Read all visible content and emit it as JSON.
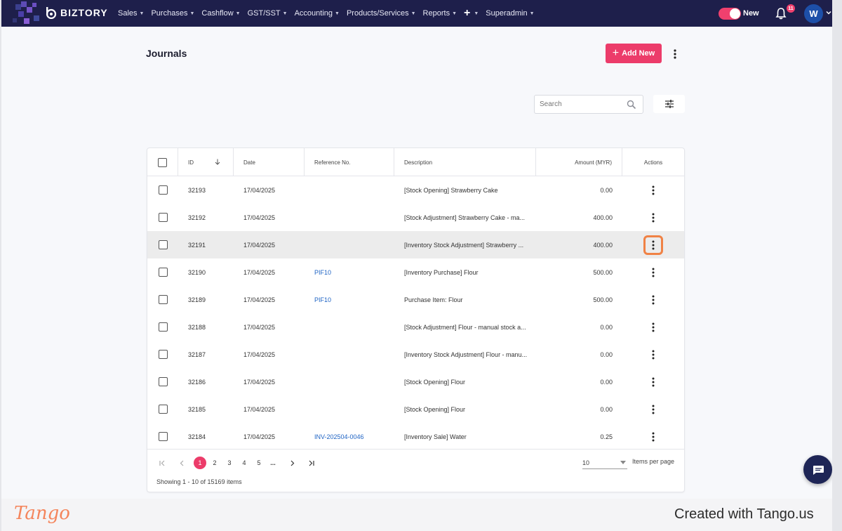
{
  "app": {
    "brand": "BIZTORY"
  },
  "nav": {
    "items": [
      {
        "label": "Sales"
      },
      {
        "label": "Purchases"
      },
      {
        "label": "Cashflow"
      },
      {
        "label": "GST/SST"
      },
      {
        "label": "Accounting"
      },
      {
        "label": "Products/Services"
      },
      {
        "label": "Reports"
      },
      {
        "label": "+"
      },
      {
        "label": "Superadmin"
      }
    ],
    "toggle_label": "New",
    "toggle_on": true,
    "notification_count": "11",
    "avatar_initial": "W"
  },
  "page": {
    "title": "Journals",
    "add_button": "Add New",
    "search_placeholder": "Search"
  },
  "table": {
    "columns": [
      "ID",
      "Date",
      "Reference No.",
      "Description",
      "Amount (MYR)",
      "Actions"
    ],
    "rows": [
      {
        "id": "32193",
        "date": "17/04/2025",
        "ref": "",
        "desc": "[Stock Opening] Strawberry Cake",
        "amount": "0.00"
      },
      {
        "id": "32192",
        "date": "17/04/2025",
        "ref": "",
        "desc": "[Stock Adjustment] Strawberry Cake - ma...",
        "amount": "400.00"
      },
      {
        "id": "32191",
        "date": "17/04/2025",
        "ref": "",
        "desc": "[Inventory Stock Adjustment] Strawberry ...",
        "amount": "400.00"
      },
      {
        "id": "32190",
        "date": "17/04/2025",
        "ref": "PIF10",
        "desc": "[Inventory Purchase] Flour",
        "amount": "500.00"
      },
      {
        "id": "32189",
        "date": "17/04/2025",
        "ref": "PIF10",
        "desc": "Purchase Item: Flour",
        "amount": "500.00"
      },
      {
        "id": "32188",
        "date": "17/04/2025",
        "ref": "",
        "desc": "[Stock Adjustment] Flour - manual stock a...",
        "amount": "0.00"
      },
      {
        "id": "32187",
        "date": "17/04/2025",
        "ref": "",
        "desc": "[Inventory Stock Adjustment] Flour - manu...",
        "amount": "0.00"
      },
      {
        "id": "32186",
        "date": "17/04/2025",
        "ref": "",
        "desc": "[Stock Opening] Flour",
        "amount": "0.00"
      },
      {
        "id": "32185",
        "date": "17/04/2025",
        "ref": "",
        "desc": "[Stock Opening] Flour",
        "amount": "0.00"
      },
      {
        "id": "32184",
        "date": "17/04/2025",
        "ref": "INV-202504-0046",
        "desc": "[Inventory Sale] Water",
        "amount": "0.25"
      }
    ]
  },
  "pagination": {
    "pages": [
      "1",
      "2",
      "3",
      "4",
      "5",
      "..."
    ],
    "current_page": "1",
    "items_per_page": "10",
    "items_per_page_label": "Items per page",
    "showing": "Showing 1 - 10 of 15169 items"
  },
  "footer": {
    "tango_logo": "Tango",
    "created_text": "Created with Tango.us"
  },
  "colors": {
    "nav_bg": "#1e1f4b",
    "accent": "#ec3c6a",
    "link": "#1e63c4",
    "highlight_ring": "#f08245"
  }
}
